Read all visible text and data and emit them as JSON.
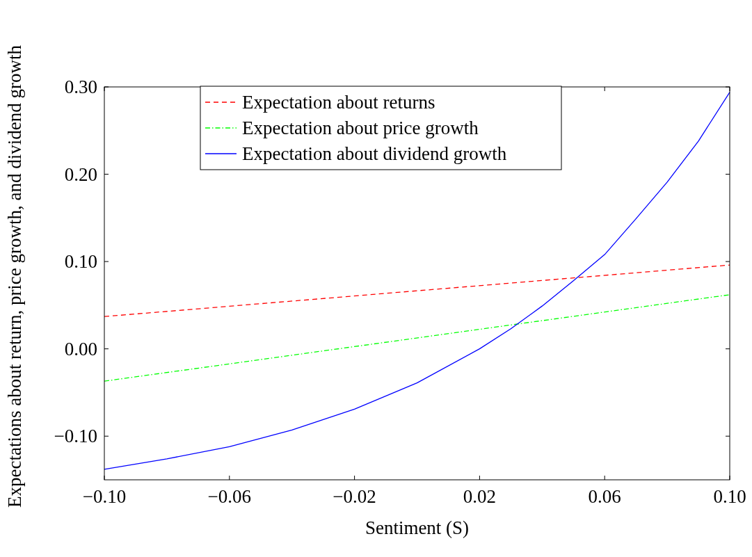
{
  "chart_data": {
    "type": "line",
    "xlabel": "Sentiment (S)",
    "ylabel": "Expectations about return, price growth, and dividend growth",
    "xlim": [
      -0.1,
      0.1
    ],
    "ylim": [
      -0.15,
      0.3
    ],
    "xticks": [
      {
        "value": -0.1,
        "label": "−0.10"
      },
      {
        "value": -0.06,
        "label": "−0.06"
      },
      {
        "value": -0.02,
        "label": "−0.02"
      },
      {
        "value": 0.02,
        "label": "0.02"
      },
      {
        "value": 0.06,
        "label": "0.06"
      },
      {
        "value": 0.1,
        "label": "0.10"
      }
    ],
    "yticks": [
      {
        "value": -0.1,
        "label": "−0.10"
      },
      {
        "value": 0,
        "label": "0.00"
      },
      {
        "value": 0.1,
        "label": "0.10"
      },
      {
        "value": 0.2,
        "label": "0.20"
      },
      {
        "value": 0.3,
        "label": "0.30"
      }
    ],
    "grid": false,
    "legend": "top",
    "marker": "none",
    "series": [
      {
        "name": "Expectation about returns",
        "color": "#ff0000",
        "line_style": "dashed",
        "x": [
          -0.1,
          0.1
        ],
        "values": [
          0.037,
          0.096
        ]
      },
      {
        "name": "Expectation about price growth",
        "color": "#00ff00",
        "line_style": "dashdot",
        "x": [
          -0.1,
          0.1
        ],
        "values": [
          -0.037,
          0.062
        ]
      },
      {
        "name": "Expectation about dividend growth",
        "color": "#0000ff",
        "line_style": "solid",
        "x": [
          -0.1,
          -0.08,
          -0.06,
          -0.04,
          -0.02,
          0,
          0.02,
          0.03,
          0.04,
          0.05,
          0.06,
          0.07,
          0.08,
          0.09,
          0.1
        ],
        "values": [
          -0.138,
          -0.126,
          -0.112,
          -0.093,
          -0.069,
          -0.039,
          0.0,
          0.023,
          0.049,
          0.078,
          0.108,
          0.149,
          0.191,
          0.238,
          0.294
        ]
      }
    ]
  }
}
